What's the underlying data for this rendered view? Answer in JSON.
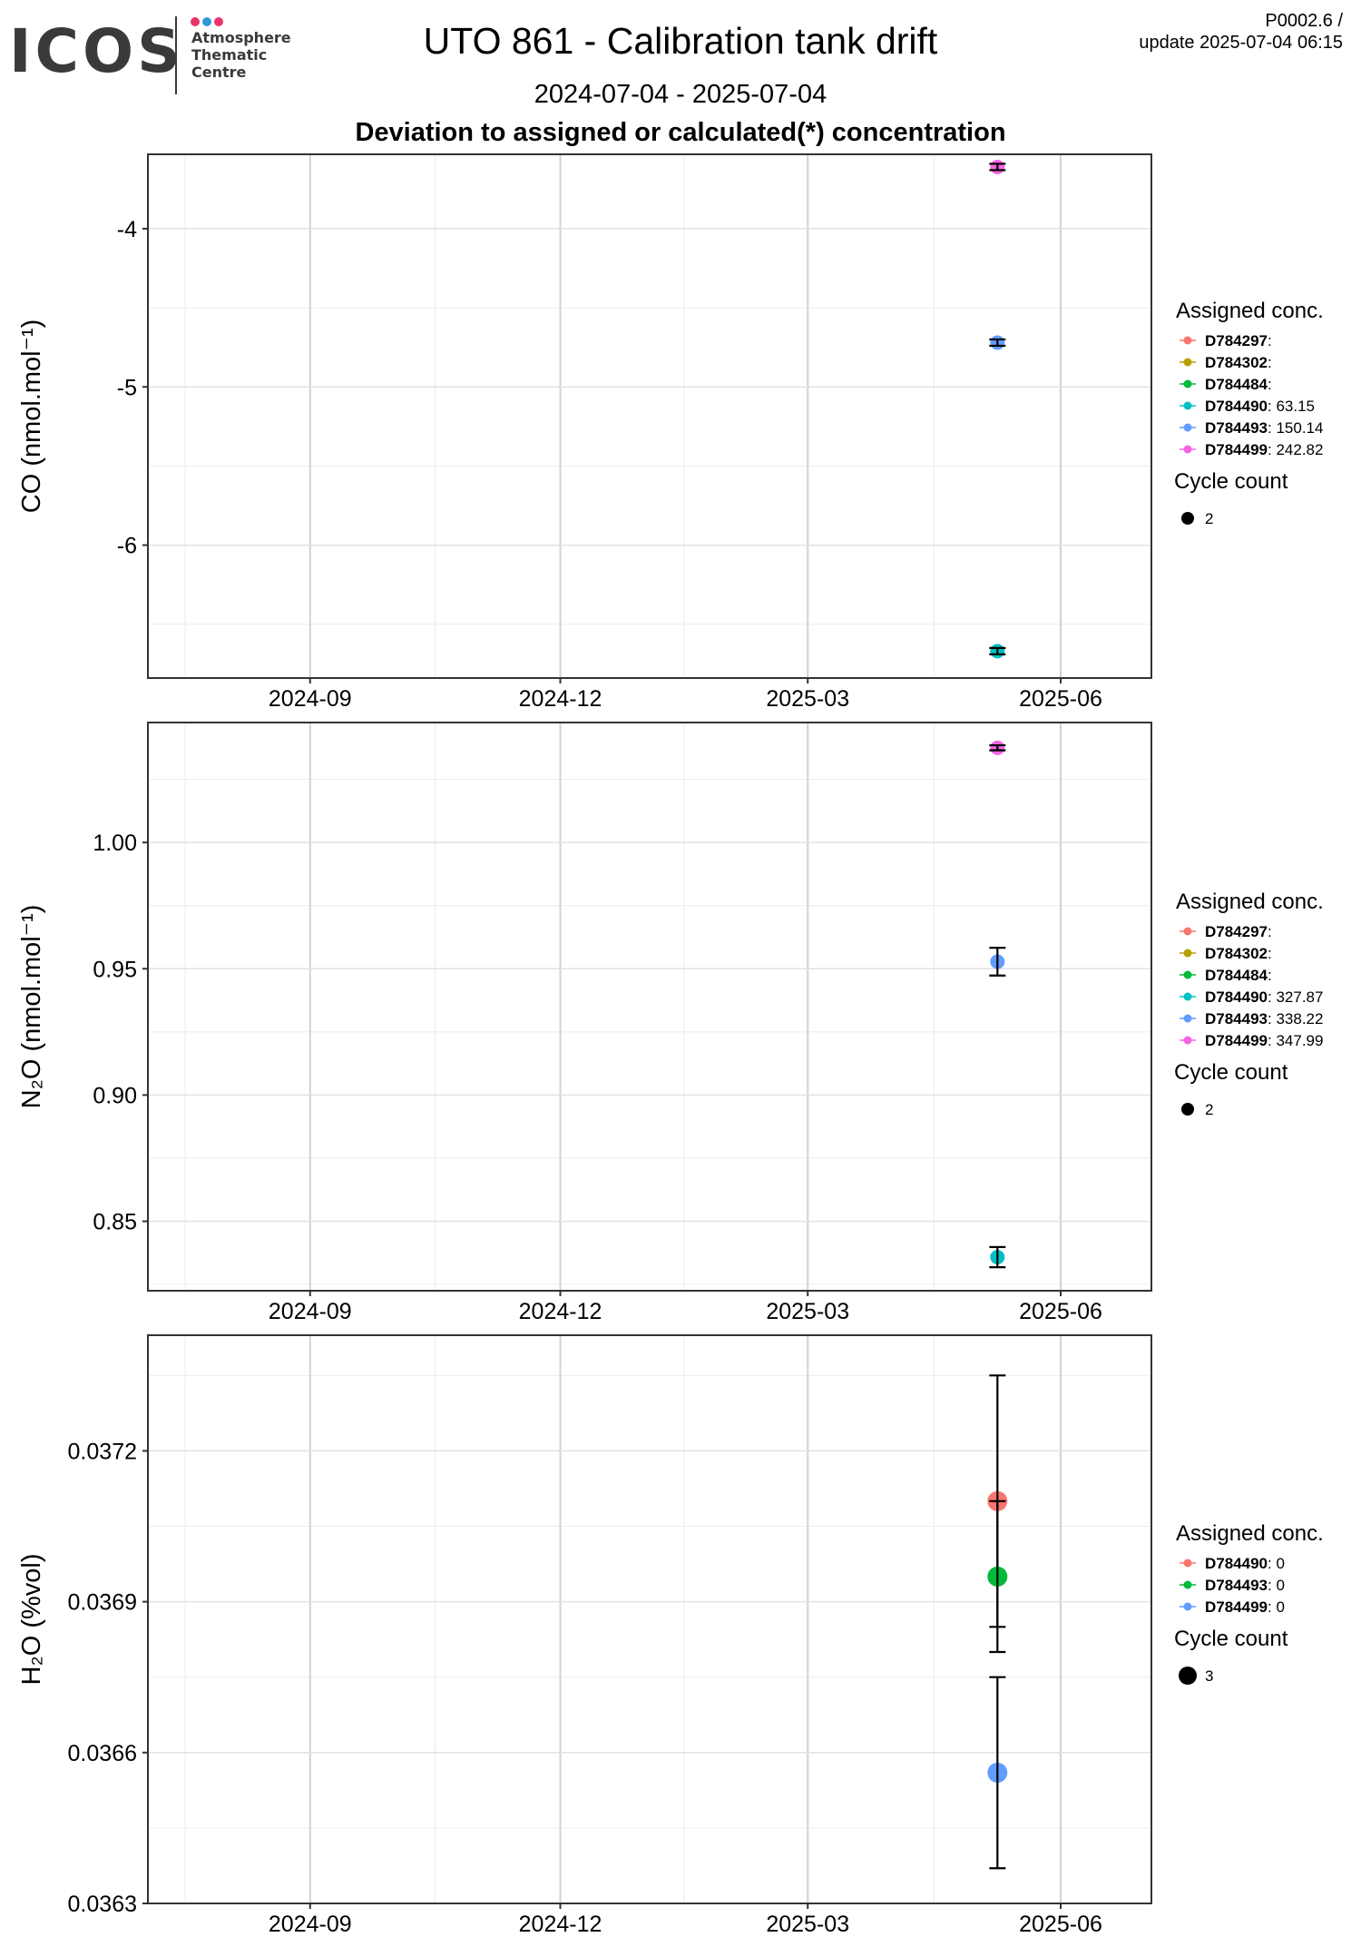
{
  "header": {
    "logo_word": "ICOS",
    "logo_lines": [
      "Atmosphere",
      "Thematic",
      "Centre"
    ],
    "logo_dot_colors": [
      "#e8336b",
      "#2e9ad6",
      "#e8336b"
    ],
    "title": "UTO 861 - Calibration tank drift",
    "date_range": "2024-07-04 - 2025-07-04",
    "subtitle": "Deviation to assigned or calculated(*) concentration",
    "version": "P0002.6 /",
    "update": "update  2025-07-04 06:15"
  },
  "chart_data": [
    {
      "type": "scatter",
      "ylabel": "CO (nmol.mol⁻¹)",
      "xlim": [
        "2024-07-04",
        "2025-07-04"
      ],
      "ylim": [
        -6.84,
        -3.53
      ],
      "x_ticks": [
        "2024-09",
        "2024-12",
        "2025-03",
        "2025-06"
      ],
      "y_ticks": [
        -6,
        -5,
        -4
      ],
      "y_tick_labels": [
        "-6",
        "-5",
        "-4"
      ],
      "grid": true,
      "legend": {
        "title": "Assigned conc.",
        "entries": [
          {
            "name": "D784297",
            "value": "",
            "color": "#f8766d"
          },
          {
            "name": "D784302",
            "value": "",
            "color": "#b79f00"
          },
          {
            "name": "D784484",
            "value": "",
            "color": "#00ba38"
          },
          {
            "name": "D784490",
            "value": "63.15",
            "color": "#00bfc4"
          },
          {
            "name": "D784493",
            "value": "150.14",
            "color": "#619cff"
          },
          {
            "name": "D784499",
            "value": "242.82",
            "color": "#f564e3"
          }
        ],
        "size_title": "Cycle count",
        "size_value": "2",
        "placement": "right"
      },
      "points": [
        {
          "series": "D784499",
          "x": "2025-05-09",
          "y": -3.61,
          "err": 0.02,
          "color": "#f564e3",
          "cycle_count": 2
        },
        {
          "series": "D784493",
          "x": "2025-05-09",
          "y": -4.72,
          "err": 0.02,
          "color": "#619cff",
          "cycle_count": 2
        },
        {
          "series": "D784490",
          "x": "2025-05-09",
          "y": -6.67,
          "err": 0.02,
          "color": "#00bfc4",
          "cycle_count": 2
        }
      ]
    },
    {
      "type": "scatter",
      "ylabel": "N₂O (nmol.mol⁻¹)",
      "xlim": [
        "2024-07-04",
        "2025-07-04"
      ],
      "ylim": [
        0.8225,
        1.0475
      ],
      "x_ticks": [
        "2024-09",
        "2024-12",
        "2025-03",
        "2025-06"
      ],
      "y_ticks": [
        0.85,
        0.9,
        0.95,
        1.0
      ],
      "y_tick_labels": [
        "0.85",
        "0.90",
        "0.95",
        "1.00"
      ],
      "grid": true,
      "legend": {
        "title": "Assigned conc.",
        "entries": [
          {
            "name": "D784297",
            "value": "",
            "color": "#f8766d"
          },
          {
            "name": "D784302",
            "value": "",
            "color": "#b79f00"
          },
          {
            "name": "D784484",
            "value": "",
            "color": "#00ba38"
          },
          {
            "name": "D784490",
            "value": "327.87",
            "color": "#00bfc4"
          },
          {
            "name": "D784493",
            "value": "338.22",
            "color": "#619cff"
          },
          {
            "name": "D784499",
            "value": "347.99",
            "color": "#f564e3"
          }
        ],
        "size_title": "Cycle count",
        "size_value": "2",
        "placement": "right"
      },
      "points": [
        {
          "series": "D784499",
          "x": "2025-05-09",
          "y": 1.0375,
          "err": 0.001,
          "color": "#f564e3",
          "cycle_count": 2
        },
        {
          "series": "D784493",
          "x": "2025-05-09",
          "y": 0.9528,
          "err": 0.0055,
          "color": "#619cff",
          "cycle_count": 2
        },
        {
          "series": "D784490",
          "x": "2025-05-09",
          "y": 0.8358,
          "err": 0.004,
          "color": "#00bfc4",
          "cycle_count": 2
        }
      ]
    },
    {
      "type": "scatter",
      "ylabel": "H₂O (%vol)",
      "xlim": [
        "2024-07-04",
        "2025-07-04"
      ],
      "ylim": [
        0.0363,
        0.03743
      ],
      "x_ticks": [
        "2024-09",
        "2024-12",
        "2025-03",
        "2025-06"
      ],
      "y_ticks": [
        0.0363,
        0.0366,
        0.0369,
        0.0372
      ],
      "y_tick_labels": [
        "0.0363",
        "0.0366",
        "0.0369",
        "0.0372"
      ],
      "grid": true,
      "legend": {
        "title": "Assigned conc.",
        "entries": [
          {
            "name": "D784490",
            "value": "0",
            "color": "#f8766d"
          },
          {
            "name": "D784493",
            "value": "0",
            "color": "#00ba38"
          },
          {
            "name": "D784499",
            "value": "0",
            "color": "#619cff"
          }
        ],
        "size_title": "Cycle count",
        "size_value": "3",
        "placement": "right"
      },
      "points": [
        {
          "series": "D784490",
          "x": "2025-05-09",
          "y": 0.0371,
          "err": 0.00025,
          "color": "#f8766d",
          "cycle_count": 3
        },
        {
          "series": "D784493",
          "x": "2025-05-09",
          "y": 0.03695,
          "err": 0.00015,
          "color": "#00ba38",
          "cycle_count": 3
        },
        {
          "series": "D784499",
          "x": "2025-05-09",
          "y": 0.03656,
          "err": 0.00019,
          "color": "#619cff",
          "cycle_count": 3
        }
      ]
    }
  ]
}
